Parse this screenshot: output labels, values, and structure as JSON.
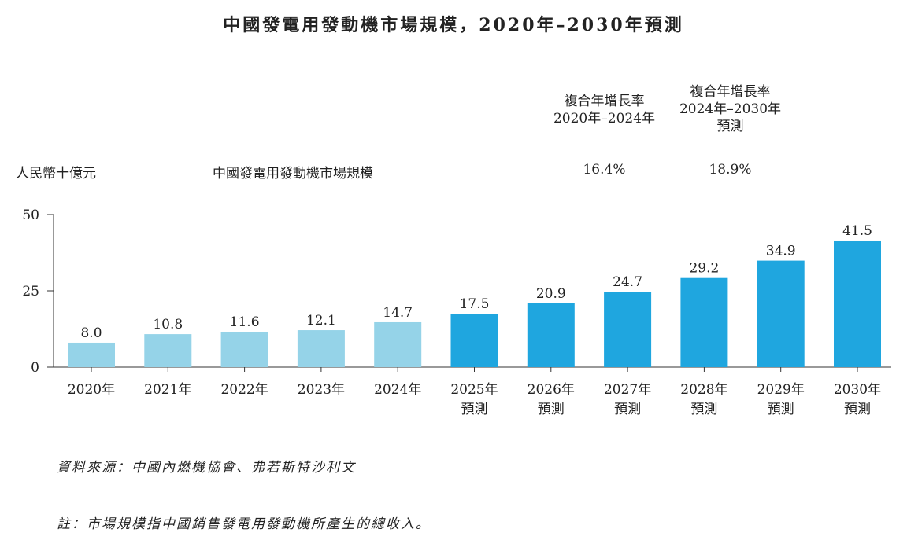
{
  "title": "中國發電用發動機市場規模，2020年–2030年預測",
  "legend": {
    "unit_label": "人民幣十億元",
    "series_label": "中國發電用發動機市場規模",
    "cagr_headers": [
      [
        "複合年增長率",
        "2020年–2024年"
      ],
      [
        "複合年增長率",
        "2024年–2030年",
        "預測"
      ]
    ],
    "cagr_values": [
      "16.4%",
      "18.9%"
    ]
  },
  "colors": {
    "historical": "#95d3e8",
    "forecast": "#1fa6df"
  },
  "chart_data": {
    "type": "bar",
    "categories": [
      [
        "2020年"
      ],
      [
        "2021年"
      ],
      [
        "2022年"
      ],
      [
        "2023年"
      ],
      [
        "2024年"
      ],
      [
        "2025年",
        "預測"
      ],
      [
        "2026年",
        "預測"
      ],
      [
        "2027年",
        "預測"
      ],
      [
        "2028年",
        "預測"
      ],
      [
        "2029年",
        "預測"
      ],
      [
        "2030年",
        "預測"
      ]
    ],
    "values": [
      8.0,
      10.8,
      11.6,
      12.1,
      14.7,
      17.5,
      20.9,
      24.7,
      29.2,
      34.9,
      41.5
    ],
    "value_labels": [
      "8.0",
      "10.8",
      "11.6",
      "12.1",
      "14.7",
      "17.5",
      "20.9",
      "24.7",
      "29.2",
      "34.9",
      "41.5"
    ],
    "forecast": [
      false,
      false,
      false,
      false,
      false,
      true,
      true,
      true,
      true,
      true,
      true
    ],
    "ylim": [
      0,
      50
    ],
    "yticks": [
      0,
      25,
      50
    ],
    "grid": false
  },
  "source_note": "資料來源：中國內燃機協會、弗若斯特沙利文",
  "footnote": "註：市場規模指中國銷售發電用發動機所產生的總收入。"
}
